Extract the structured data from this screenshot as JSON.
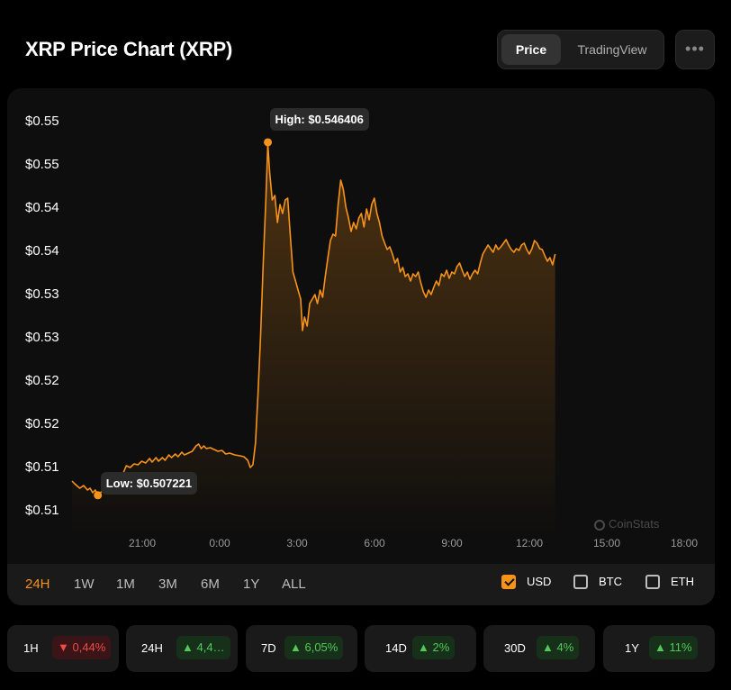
{
  "header": {
    "title": "XRP Price Chart (XRP)",
    "toggle": {
      "active": "Price",
      "inactive": "TradingView"
    },
    "more_label": "•••"
  },
  "chart_data": {
    "type": "area",
    "title": "XRP Price Chart (XRP)",
    "y_tick_labels": [
      "$0.55",
      "$0.55",
      "$0.54",
      "$0.54",
      "$0.53",
      "$0.53",
      "$0.52",
      "$0.52",
      "$0.51",
      "$0.51"
    ],
    "x_tick_labels": [
      "21:00",
      "0:00",
      "3:00",
      "6:00",
      "9:00",
      "12:00",
      "15:00",
      "18:00"
    ],
    "ylim": [
      0.5054,
      0.5486
    ],
    "x_unit": "hours since 18:00 (previous day)",
    "series": [
      {
        "name": "XRP/USD",
        "points": [
          [
            0,
            0.5088
          ],
          [
            0.1,
            0.5085
          ],
          [
            0.3,
            0.508
          ],
          [
            0.45,
            0.5083
          ],
          [
            0.6,
            0.5078
          ],
          [
            0.7,
            0.508
          ],
          [
            0.8,
            0.5075
          ],
          [
            0.9,
            0.5078
          ],
          [
            1.0,
            0.5072
          ],
          [
            1.1,
            0.5075
          ],
          [
            1.2,
            0.5078
          ],
          [
            1.4,
            0.5077
          ],
          [
            1.55,
            0.508
          ],
          [
            1.75,
            0.5085
          ],
          [
            2.0,
            0.5098
          ],
          [
            2.1,
            0.5105
          ],
          [
            2.25,
            0.5103
          ],
          [
            2.4,
            0.5107
          ],
          [
            2.55,
            0.5106
          ],
          [
            2.7,
            0.511
          ],
          [
            2.85,
            0.5108
          ],
          [
            3.0,
            0.5113
          ],
          [
            3.1,
            0.5109
          ],
          [
            3.25,
            0.5114
          ],
          [
            3.35,
            0.511
          ],
          [
            3.5,
            0.5114
          ],
          [
            3.6,
            0.5111
          ],
          [
            3.75,
            0.5117
          ],
          [
            3.85,
            0.5114
          ],
          [
            4.0,
            0.5118
          ],
          [
            4.1,
            0.5115
          ],
          [
            4.25,
            0.512
          ],
          [
            4.35,
            0.5117
          ],
          [
            4.5,
            0.5119
          ],
          [
            4.65,
            0.5121
          ],
          [
            4.8,
            0.5127
          ],
          [
            4.9,
            0.5129
          ],
          [
            5.0,
            0.5124
          ],
          [
            5.1,
            0.5127
          ],
          [
            5.2,
            0.5124
          ],
          [
            5.35,
            0.5125
          ],
          [
            5.5,
            0.5123
          ],
          [
            5.65,
            0.5121
          ],
          [
            5.8,
            0.5122
          ],
          [
            5.95,
            0.5118
          ],
          [
            6.1,
            0.5119
          ],
          [
            6.3,
            0.5117
          ],
          [
            6.5,
            0.5116
          ],
          [
            6.65,
            0.5115
          ],
          [
            6.8,
            0.5111
          ],
          [
            6.9,
            0.5103
          ],
          [
            7.0,
            0.5106
          ],
          [
            7.1,
            0.513
          ],
          [
            7.2,
            0.5185
          ],
          [
            7.3,
            0.525
          ],
          [
            7.4,
            0.533
          ],
          [
            7.5,
            0.54
          ],
          [
            7.58,
            0.5462
          ],
          [
            7.65,
            0.543
          ],
          [
            7.75,
            0.54
          ],
          [
            7.85,
            0.5405
          ],
          [
            7.95,
            0.5375
          ],
          [
            8.05,
            0.5395
          ],
          [
            8.15,
            0.5385
          ],
          [
            8.25,
            0.54
          ],
          [
            8.35,
            0.5402
          ],
          [
            8.45,
            0.536
          ],
          [
            8.55,
            0.532
          ],
          [
            8.65,
            0.531
          ],
          [
            8.75,
            0.53
          ],
          [
            8.85,
            0.529
          ],
          [
            8.92,
            0.5255
          ],
          [
            9.0,
            0.527
          ],
          [
            9.1,
            0.526
          ],
          [
            9.2,
            0.5285
          ],
          [
            9.3,
            0.529
          ],
          [
            9.4,
            0.5295
          ],
          [
            9.5,
            0.5285
          ],
          [
            9.6,
            0.53
          ],
          [
            9.7,
            0.5292
          ],
          [
            9.8,
            0.5315
          ],
          [
            9.9,
            0.5335
          ],
          [
            10.0,
            0.5355
          ],
          [
            10.1,
            0.5362
          ],
          [
            10.2,
            0.536
          ],
          [
            10.3,
            0.5395
          ],
          [
            10.4,
            0.5422
          ],
          [
            10.5,
            0.5412
          ],
          [
            10.6,
            0.5392
          ],
          [
            10.7,
            0.538
          ],
          [
            10.8,
            0.5365
          ],
          [
            10.9,
            0.5375
          ],
          [
            11.0,
            0.5368
          ],
          [
            11.1,
            0.538
          ],
          [
            11.2,
            0.5385
          ],
          [
            11.3,
            0.537
          ],
          [
            11.4,
            0.539
          ],
          [
            11.5,
            0.5378
          ],
          [
            11.6,
            0.5395
          ],
          [
            11.7,
            0.5402
          ],
          [
            11.8,
            0.5385
          ],
          [
            11.9,
            0.5375
          ],
          [
            12.0,
            0.536
          ],
          [
            12.1,
            0.5352
          ],
          [
            12.2,
            0.5345
          ],
          [
            12.3,
            0.5348
          ],
          [
            12.4,
            0.534
          ],
          [
            12.5,
            0.533
          ],
          [
            12.6,
            0.5335
          ],
          [
            12.7,
            0.532
          ],
          [
            12.8,
            0.5325
          ],
          [
            12.9,
            0.5315
          ],
          [
            13.0,
            0.5318
          ],
          [
            13.1,
            0.531
          ],
          [
            13.2,
            0.5318
          ],
          [
            13.3,
            0.5315
          ],
          [
            13.4,
            0.532
          ],
          [
            13.5,
            0.5308
          ],
          [
            13.6,
            0.5298
          ],
          [
            13.7,
            0.5292
          ],
          [
            13.8,
            0.53
          ],
          [
            13.9,
            0.5295
          ],
          [
            14.0,
            0.5303
          ],
          [
            14.1,
            0.531
          ],
          [
            14.2,
            0.5305
          ],
          [
            14.3,
            0.5318
          ],
          [
            14.4,
            0.5315
          ],
          [
            14.5,
            0.5322
          ],
          [
            14.6,
            0.5313
          ],
          [
            14.7,
            0.532
          ],
          [
            14.8,
            0.5318
          ],
          [
            14.9,
            0.5326
          ],
          [
            15.0,
            0.533
          ],
          [
            15.1,
            0.5322
          ],
          [
            15.2,
            0.5315
          ],
          [
            15.3,
            0.532
          ],
          [
            15.4,
            0.5312
          ],
          [
            15.5,
            0.5318
          ],
          [
            15.6,
            0.5322
          ],
          [
            15.7,
            0.5318
          ],
          [
            15.8,
            0.533
          ],
          [
            15.9,
            0.534
          ],
          [
            16.0,
            0.5345
          ],
          [
            16.1,
            0.535
          ],
          [
            16.2,
            0.5346
          ],
          [
            16.3,
            0.5342
          ],
          [
            16.4,
            0.535
          ],
          [
            16.5,
            0.5345
          ],
          [
            16.6,
            0.5348
          ],
          [
            16.7,
            0.5352
          ],
          [
            16.8,
            0.5356
          ],
          [
            16.9,
            0.535
          ],
          [
            17.0,
            0.5345
          ],
          [
            17.1,
            0.5342
          ],
          [
            17.2,
            0.5346
          ],
          [
            17.3,
            0.5344
          ],
          [
            17.4,
            0.535
          ],
          [
            17.5,
            0.5352
          ],
          [
            17.6,
            0.5345
          ],
          [
            17.7,
            0.534
          ],
          [
            17.8,
            0.5346
          ],
          [
            17.9,
            0.5355
          ],
          [
            18.0,
            0.5352
          ],
          [
            18.1,
            0.5346
          ],
          [
            18.2,
            0.5345
          ],
          [
            18.3,
            0.5338
          ],
          [
            18.4,
            0.5332
          ],
          [
            18.5,
            0.5336
          ],
          [
            18.6,
            0.5328
          ],
          [
            18.7,
            0.534
          ]
        ],
        "low": {
          "x": 1.0,
          "y": 0.507221,
          "label": "Low: $0.507221"
        },
        "high": {
          "x": 7.58,
          "y": 0.546406,
          "label": "High: $0.546406"
        }
      }
    ],
    "colors": {
      "line": "#f7931a",
      "fill_top": "#f7931a"
    }
  },
  "watermark": "CoinStats",
  "range_tabs": [
    "24H",
    "1W",
    "1M",
    "3M",
    "6M",
    "1Y",
    "ALL"
  ],
  "active_range": "24H",
  "currencies": [
    {
      "label": "USD",
      "checked": true
    },
    {
      "label": "BTC",
      "checked": false
    },
    {
      "label": "ETH",
      "checked": false
    }
  ],
  "stats": [
    {
      "label": "1H",
      "change": "▼ 0,44%",
      "dir": "down"
    },
    {
      "label": "24H",
      "change": "▲ 4,4…",
      "dir": "up"
    },
    {
      "label": "7D",
      "change": "▲ 6,05%",
      "dir": "up"
    },
    {
      "label": "14D",
      "change": "▲ 2%",
      "dir": "up"
    },
    {
      "label": "30D",
      "change": "▲ 4%",
      "dir": "up"
    },
    {
      "label": "1Y",
      "change": "▲ 11%",
      "dir": "up"
    }
  ]
}
